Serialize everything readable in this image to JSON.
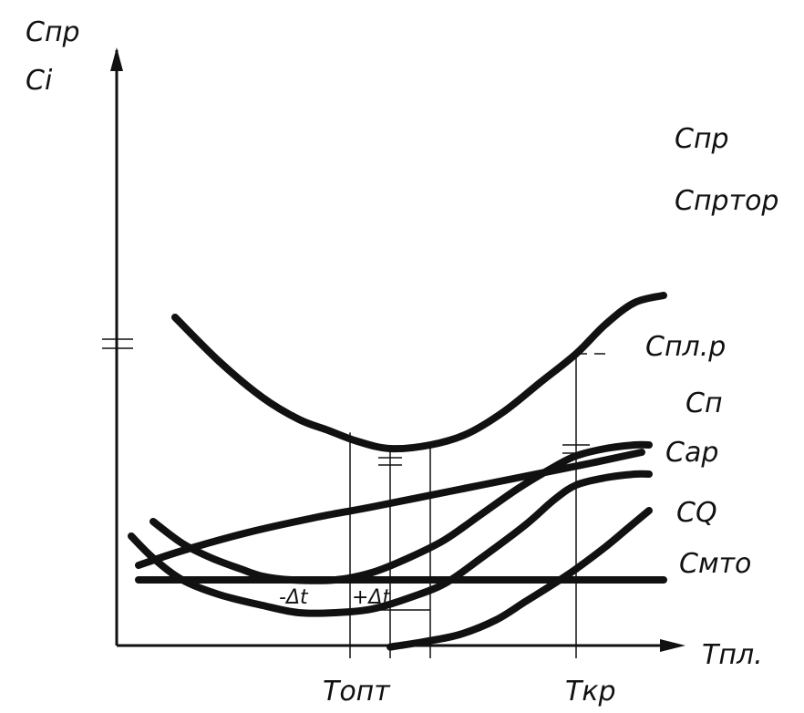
{
  "chart_data": {
    "type": "line",
    "y_axis_labels": [
      "Cпр",
      "Ci"
    ],
    "x_axis_label": "Tпл.",
    "x_ticks": [
      {
        "id": "opt",
        "label": "Tопт",
        "x": 37.5
      },
      {
        "id": "kr",
        "label": "Tкр",
        "x": 63
      }
    ],
    "delta_labels": {
      "minus": "-Δt",
      "plus": "+Δt"
    },
    "opt_range": [
      32,
      43
    ],
    "annotations": {
      "c_prtor": "Cпртор"
    },
    "xlim": [
      0,
      80
    ],
    "ylim": [
      0,
      68
    ],
    "series": [
      {
        "id": "cpr",
        "name": "Cпр",
        "points": [
          [
            8,
            45
          ],
          [
            14,
            39
          ],
          [
            20,
            34
          ],
          [
            25,
            31
          ],
          [
            29,
            29.5
          ],
          [
            33,
            28
          ],
          [
            37.5,
            27
          ],
          [
            43,
            27.5
          ],
          [
            48,
            29
          ],
          [
            53,
            32
          ],
          [
            58,
            36
          ],
          [
            63,
            40
          ],
          [
            67,
            44
          ],
          [
            71,
            47
          ],
          [
            75,
            48
          ]
        ]
      },
      {
        "id": "cplr",
        "name": "Cпл.р",
        "points": [
          [
            5,
            17
          ],
          [
            9,
            14
          ],
          [
            13,
            12
          ],
          [
            17,
            10.5
          ],
          [
            20,
            9.5
          ],
          [
            24,
            9
          ],
          [
            30,
            9
          ],
          [
            35,
            10
          ],
          [
            40,
            12
          ],
          [
            45,
            14.5
          ],
          [
            50,
            18
          ],
          [
            55,
            21.5
          ],
          [
            60,
            24.5
          ],
          [
            63,
            26
          ],
          [
            67,
            27
          ],
          [
            71,
            27.5
          ],
          [
            73,
            27.5
          ]
        ]
      },
      {
        "id": "cp",
        "name": "Cп",
        "points": [
          [
            3,
            11
          ],
          [
            9,
            13
          ],
          [
            18,
            15.5
          ],
          [
            27,
            17.5
          ],
          [
            35,
            19
          ],
          [
            45,
            21
          ],
          [
            55,
            23
          ],
          [
            65,
            25
          ],
          [
            72,
            26.5
          ]
        ]
      },
      {
        "id": "car",
        "name": "Cар",
        "points": [
          [
            2,
            15
          ],
          [
            5,
            12
          ],
          [
            9,
            9
          ],
          [
            14,
            7
          ],
          [
            20,
            5.5
          ],
          [
            25,
            4.5
          ],
          [
            30,
            4.5
          ],
          [
            35,
            5
          ],
          [
            40,
            6.5
          ],
          [
            45,
            8.5
          ],
          [
            50,
            12
          ],
          [
            56,
            16.5
          ],
          [
            60,
            20
          ],
          [
            63,
            22
          ],
          [
            67,
            23
          ],
          [
            71,
            23.5
          ],
          [
            73,
            23.5
          ]
        ]
      },
      {
        "id": "cq",
        "name": "CQ",
        "points": [
          [
            37.5,
            -0.2
          ],
          [
            42,
            0.5
          ],
          [
            47,
            1.5
          ],
          [
            52,
            3.5
          ],
          [
            56,
            6
          ],
          [
            60,
            8.5
          ],
          [
            63,
            10.5
          ],
          [
            67,
            13.5
          ],
          [
            70,
            16
          ],
          [
            73,
            18.5
          ]
        ]
      },
      {
        "id": "cmto",
        "name": "Cмто",
        "points": [
          [
            3,
            9
          ],
          [
            20,
            9
          ],
          [
            40,
            9
          ],
          [
            60,
            9
          ],
          [
            75,
            9
          ]
        ]
      }
    ]
  }
}
